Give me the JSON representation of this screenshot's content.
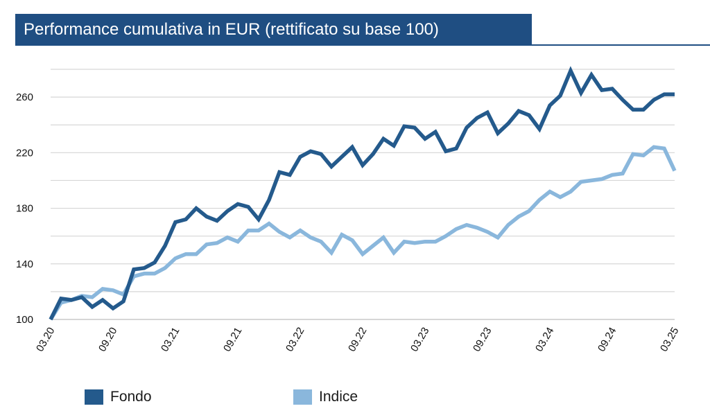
{
  "chart_data": {
    "type": "line",
    "title": "Performance cumulativa in EUR (rettificato su base 100)",
    "xlabel": "",
    "ylabel": "",
    "ylim": [
      100,
      280
    ],
    "yticks": [
      100,
      140,
      180,
      220,
      260
    ],
    "xticks": [
      "03.20",
      "09.20",
      "03.21",
      "09.21",
      "03.22",
      "09.22",
      "03.23",
      "09.23",
      "03.24",
      "09.24",
      "03.25"
    ],
    "grid": true,
    "legend_position": "bottom",
    "series": [
      {
        "name": "Fondo",
        "color": "#245a8c",
        "values": [
          100,
          115,
          114,
          116,
          109,
          114,
          108,
          113,
          136,
          137,
          141,
          153,
          170,
          172,
          180,
          174,
          171,
          178,
          183,
          181,
          172,
          186,
          206,
          204,
          217,
          221,
          219,
          210,
          217,
          224,
          211,
          219,
          230,
          225,
          239,
          238,
          230,
          235,
          221,
          223,
          238,
          245,
          249,
          234,
          241,
          250,
          247,
          237,
          254,
          261,
          279,
          263,
          276,
          265,
          266,
          258,
          251,
          251,
          258,
          262,
          262
        ]
      },
      {
        "name": "Indice",
        "color": "#8ab7dc",
        "values": [
          100,
          112,
          114,
          117,
          116,
          122,
          121,
          118,
          131,
          133,
          133,
          137,
          144,
          147,
          147,
          154,
          155,
          159,
          156,
          164,
          164,
          169,
          163,
          159,
          164,
          159,
          156,
          148,
          161,
          157,
          147,
          153,
          159,
          148,
          156,
          155,
          156,
          156,
          160,
          165,
          168,
          166,
          163,
          159,
          168,
          174,
          178,
          186,
          192,
          188,
          192,
          199,
          200,
          201,
          204,
          205,
          219,
          218,
          224,
          223,
          207
        ]
      }
    ]
  }
}
